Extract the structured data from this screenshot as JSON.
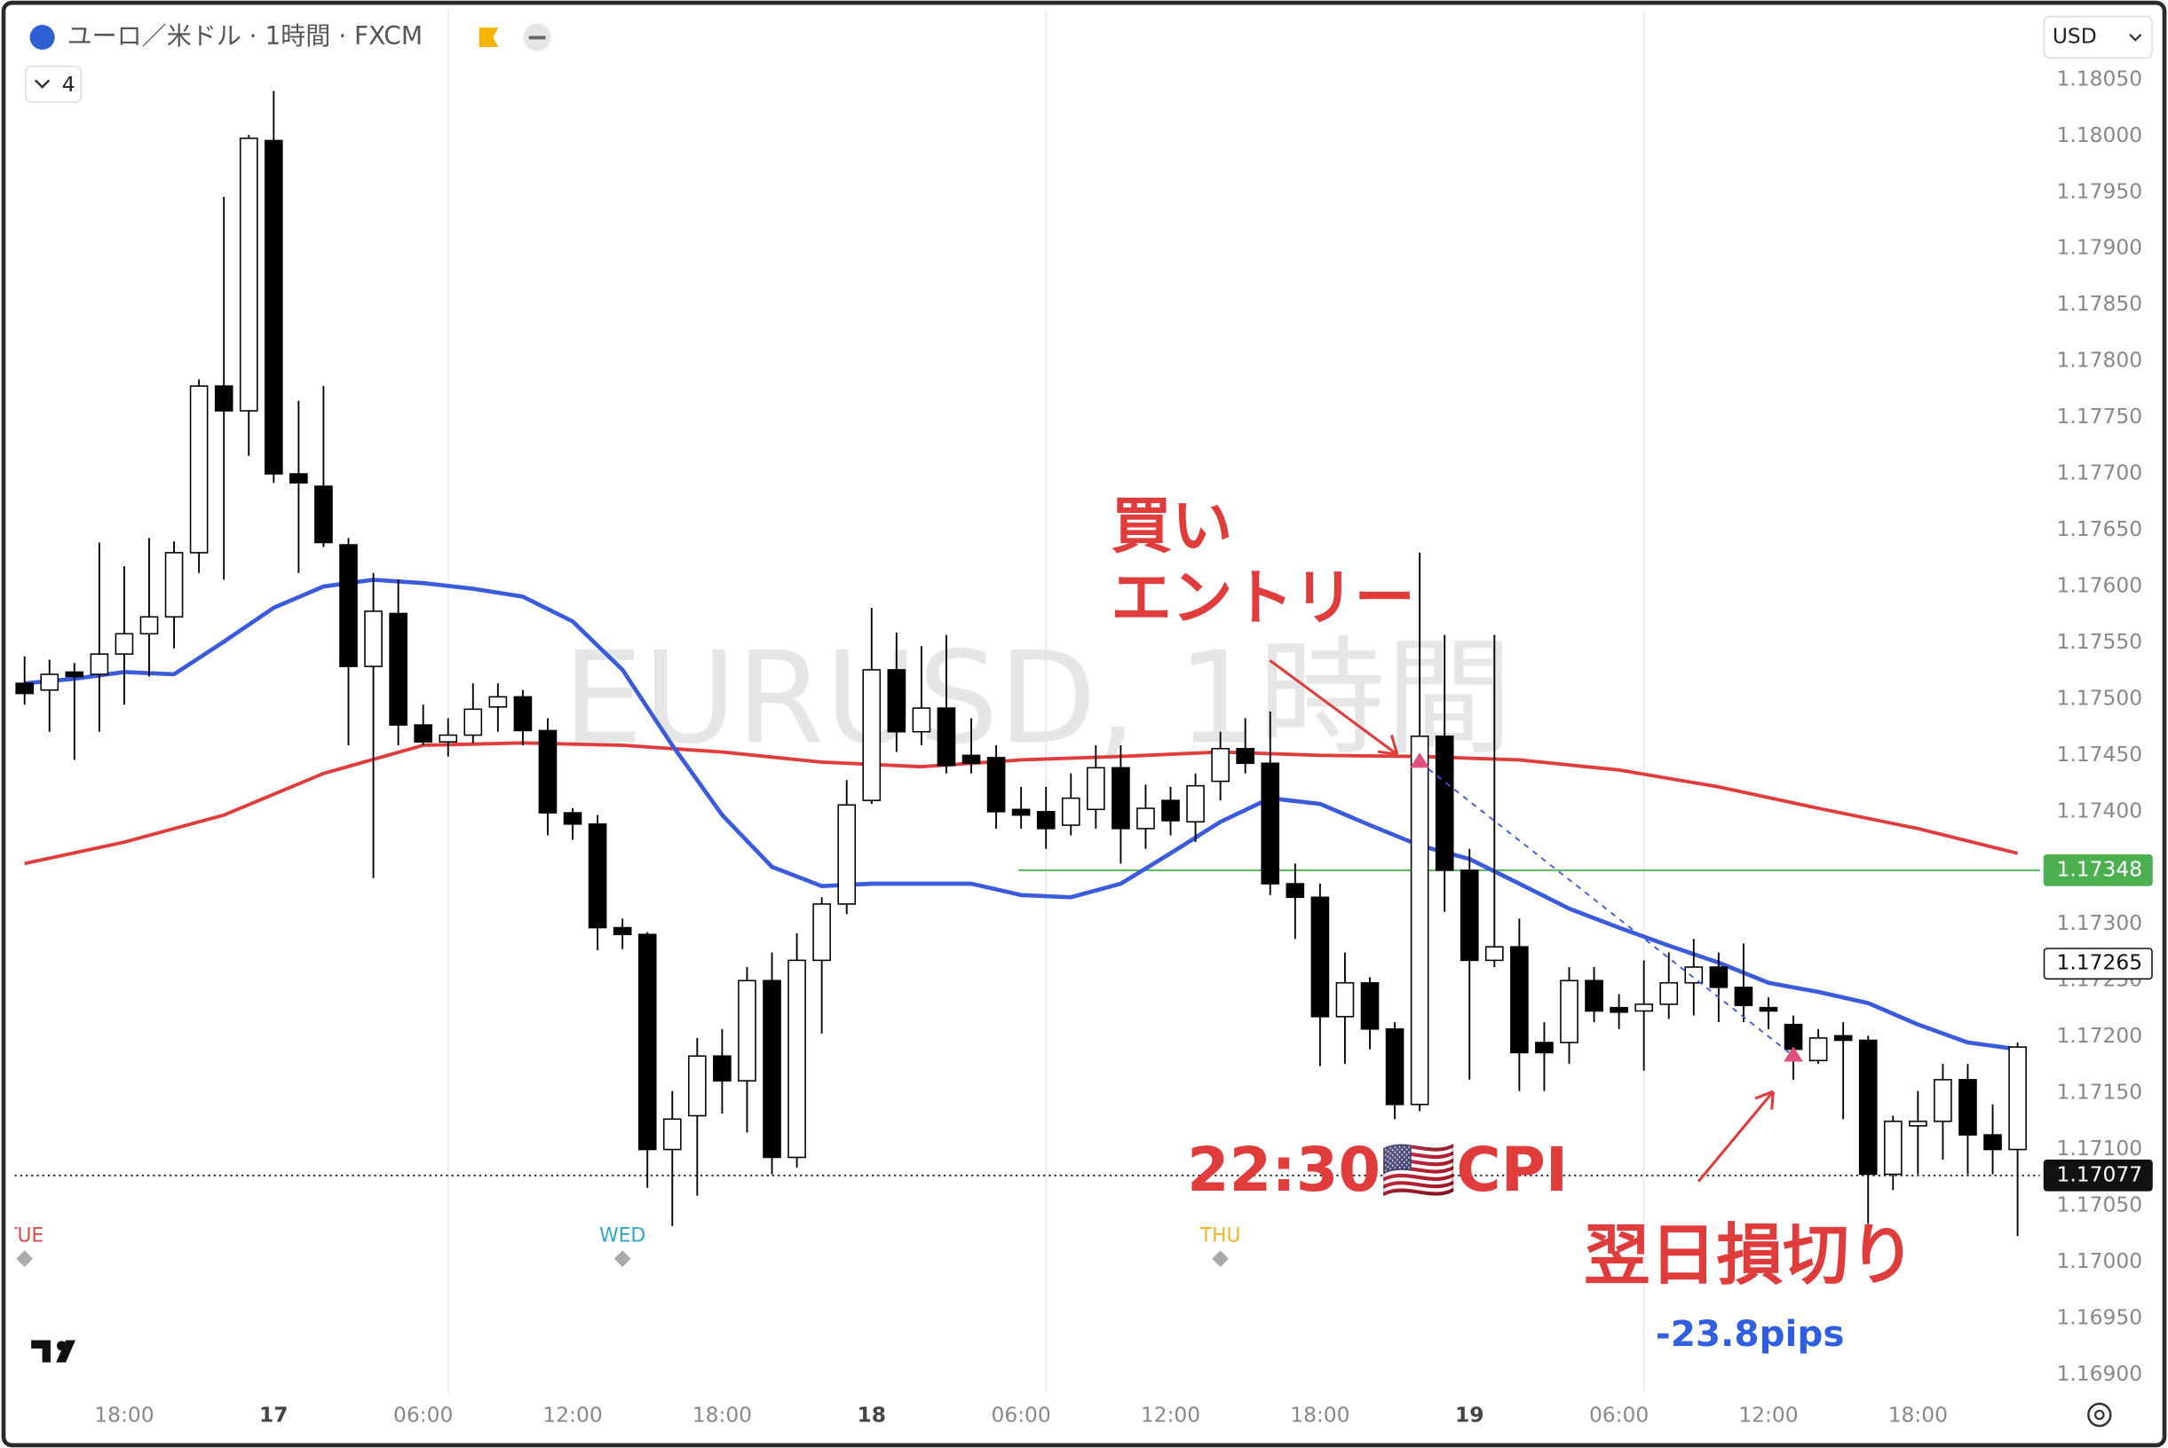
{
  "header": {
    "symbol": "ユーロ／米ドル · 1時間 · FXCM",
    "indicator_count": 4,
    "currency": "USD"
  },
  "chart_data": {
    "type": "candlestick",
    "watermark": "EURUSD, 1時間",
    "up_color": "#ffffff",
    "down_color": "#000000",
    "x": [
      -4,
      -3,
      -2,
      -1,
      0,
      1,
      2,
      3,
      4,
      5,
      6,
      7,
      8,
      9,
      10,
      11,
      12,
      13,
      14,
      15,
      16,
      17,
      18,
      19,
      20,
      21,
      22,
      23,
      24,
      25,
      26,
      27,
      28,
      29,
      30,
      31,
      32,
      33,
      34,
      35,
      36,
      37,
      38,
      39,
      40,
      41,
      42,
      43,
      44,
      45,
      46,
      47,
      48,
      49,
      50,
      51,
      52,
      53,
      54,
      55,
      56,
      57,
      58,
      59,
      60,
      61,
      62,
      63,
      64,
      65,
      66,
      67,
      68,
      69,
      70,
      71,
      72,
      73,
      74,
      75,
      76
    ],
    "open": [
      1.17514,
      1.17508,
      1.17524,
      1.17522,
      1.1754,
      1.17558,
      1.17573,
      1.1763,
      1.17778,
      1.17756,
      1.17996,
      1.177,
      1.17689,
      1.17637,
      1.17529,
      1.17576,
      1.17477,
      1.17462,
      1.17468,
      1.17493,
      1.17502,
      1.17472,
      1.17399,
      1.17389,
      1.17297,
      1.17291,
      1.171,
      1.1713,
      1.17183,
      1.17161,
      1.1725,
      1.17093,
      1.17268,
      1.17318,
      1.1741,
      1.17526,
      1.17471,
      1.17492,
      1.1745,
      1.17448,
      1.17402,
      1.174,
      1.17388,
      1.17402,
      1.17439,
      1.17385,
      1.1741,
      1.17391,
      1.17427,
      1.17456,
      1.17443,
      1.17336,
      1.17324,
      1.17218,
      1.17248,
      1.17207,
      1.1714,
      1.17467,
      1.17348,
      1.17268,
      1.1728,
      1.17195,
      1.17195,
      1.1725,
      1.17226,
      1.17223,
      1.17229,
      1.17248,
      1.17262,
      1.17244,
      1.17226,
      1.17211,
      1.17179,
      1.17201,
      1.17197,
      1.17078,
      1.17121,
      1.17125,
      1.17162,
      1.17113,
      1.171
    ],
    "high": [
      1.17538,
      1.17535,
      1.17532,
      1.17639,
      1.17618,
      1.17643,
      1.1764,
      1.17784,
      1.17946,
      1.18001,
      1.1804,
      1.17765,
      1.17778,
      1.17643,
      1.17612,
      1.17606,
      1.17495,
      1.17483,
      1.17514,
      1.17514,
      1.17508,
      1.17483,
      1.17403,
      1.17397,
      1.17305,
      1.17293,
      1.17152,
      1.17199,
      1.17207,
      1.17262,
      1.17275,
      1.17292,
      1.17324,
      1.17428,
      1.17581,
      1.17559,
      1.17547,
      1.17557,
      1.17483,
      1.17459,
      1.17422,
      1.17422,
      1.17434,
      1.17459,
      1.17459,
      1.17424,
      1.17422,
      1.17434,
      1.17471,
      1.17483,
      1.17489,
      1.17354,
      1.17336,
      1.17275,
      1.17253,
      1.17213,
      1.1763,
      1.17557,
      1.17367,
      1.17557,
      1.17305,
      1.17213,
      1.17262,
      1.17262,
      1.17238,
      1.17268,
      1.17275,
      1.17287,
      1.17275,
      1.17283,
      1.17235,
      1.17219,
      1.17207,
      1.17213,
      1.17201,
      1.1713,
      1.17152,
      1.17176,
      1.17176,
      1.1714,
      1.17195
    ],
    "low": [
      1.17495,
      1.17471,
      1.17446,
      1.17471,
      1.17495,
      1.1752,
      1.17545,
      1.17612,
      1.17606,
      1.17716,
      1.17692,
      1.17612,
      1.17635,
      1.17459,
      1.17341,
      1.17459,
      1.17459,
      1.17449,
      1.17461,
      1.17471,
      1.17459,
      1.17379,
      1.17375,
      1.17277,
      1.17278,
      1.17066,
      1.17032,
      1.17059,
      1.17132,
      1.17115,
      1.17078,
      1.17084,
      1.17203,
      1.17309,
      1.17407,
      1.17453,
      1.17459,
      1.17434,
      1.17434,
      1.17385,
      1.17385,
      1.17367,
      1.17379,
      1.17385,
      1.17354,
      1.17367,
      1.17379,
      1.17373,
      1.1741,
      1.17434,
      1.17326,
      1.17287,
      1.17174,
      1.17176,
      1.17189,
      1.17127,
      1.17134,
      1.17311,
      1.17162,
      1.17262,
      1.17152,
      1.17152,
      1.17176,
      1.17213,
      1.17207,
      1.1717,
      1.17216,
      1.17219,
      1.17213,
      1.17213,
      1.17207,
      1.17162,
      1.17176,
      1.17127,
      1.17034,
      1.17064,
      1.17078,
      1.17091,
      1.17078,
      1.17078,
      1.17023
    ],
    "close": [
      1.17505,
      1.17522,
      1.1752,
      1.1754,
      1.17558,
      1.17573,
      1.1763,
      1.17778,
      1.17756,
      1.17998,
      1.177,
      1.17692,
      1.17639,
      1.17529,
      1.17578,
      1.17477,
      1.17462,
      1.17468,
      1.17491,
      1.17502,
      1.17472,
      1.17399,
      1.17389,
      1.17297,
      1.17291,
      1.171,
      1.17127,
      1.17183,
      1.17161,
      1.1725,
      1.17093,
      1.17268,
      1.17318,
      1.17406,
      1.17526,
      1.17471,
      1.17492,
      1.17441,
      1.17443,
      1.174,
      1.17397,
      1.17385,
      1.17412,
      1.17439,
      1.17385,
      1.17403,
      1.17392,
      1.17423,
      1.17456,
      1.17443,
      1.17336,
      1.17324,
      1.17218,
      1.17248,
      1.17207,
      1.1714,
      1.17467,
      1.17348,
      1.17268,
      1.1728,
      1.17186,
      1.17186,
      1.1725,
      1.17223,
      1.17222,
      1.17229,
      1.17248,
      1.17262,
      1.17244,
      1.17228,
      1.17223,
      1.17189,
      1.17199,
      1.17197,
      1.17078,
      1.17125,
      1.17125,
      1.17162,
      1.17113,
      1.171,
      1.17191
    ],
    "lines": [
      {
        "color": "#e03c3c",
        "width": 2.5,
        "x": [
          -4,
          0,
          4,
          8,
          12,
          16,
          20,
          24,
          28,
          32,
          36,
          40,
          44,
          48,
          52,
          56,
          60,
          64,
          68,
          72,
          76
        ],
        "values": [
          1.17354,
          1.17373,
          1.17397,
          1.17434,
          1.17459,
          1.17461,
          1.17459,
          1.17453,
          1.17444,
          1.1744,
          1.17446,
          1.17449,
          1.17453,
          1.1745,
          1.17449,
          1.17446,
          1.17437,
          1.17422,
          1.17403,
          1.17385,
          1.17363
        ]
      },
      {
        "color": "#3a5bdc",
        "width": 3,
        "x": [
          -4,
          -2,
          0,
          2,
          4,
          6,
          8,
          10,
          12,
          14,
          16,
          18,
          20,
          22,
          24,
          26,
          28,
          30,
          32,
          34,
          36,
          38,
          40,
          42,
          44,
          46,
          48,
          50,
          52,
          54,
          56,
          58,
          60,
          62,
          64,
          66,
          68,
          70,
          72,
          74,
          76
        ],
        "values": [
          1.17514,
          1.17518,
          1.17524,
          1.17522,
          1.17551,
          1.17581,
          1.176,
          1.17606,
          1.17603,
          1.17598,
          1.17591,
          1.17569,
          1.17526,
          1.17459,
          1.17397,
          1.17351,
          1.17334,
          1.17336,
          1.17336,
          1.17336,
          1.17326,
          1.17324,
          1.17336,
          1.17363,
          1.17391,
          1.17412,
          1.17407,
          1.17388,
          1.1737,
          1.17358,
          1.17336,
          1.17314,
          1.17297,
          1.17281,
          1.17266,
          1.17248,
          1.1724,
          1.1723,
          1.17211,
          1.17195,
          1.17189
        ]
      }
    ],
    "levels": [
      {
        "value": 1.17348,
        "from": 35.9,
        "color": "#4caf50",
        "dash": "none"
      },
      {
        "value": 1.17077,
        "from": -4.4,
        "color": "#222222",
        "dash": "1.5 2.5"
      }
    ],
    "price_labels": [
      {
        "value": 1.17348,
        "bg": "#4caf50",
        "fg": "#ffffff",
        "border": "#4caf50"
      },
      {
        "value": 1.17265,
        "bg": "#ffffff",
        "fg": "#111111",
        "border": "#111111"
      },
      {
        "value": 1.17077,
        "bg": "#111111",
        "fg": "#ffffff",
        "border": "#111111"
      }
    ],
    "sessions": [
      {
        "label": "TUE",
        "x": -4,
        "color": "#e04848"
      },
      {
        "label": "WED",
        "x": 20,
        "color": "#2fa8c8"
      },
      {
        "label": "THU",
        "x": 44,
        "color": "#f0b429"
      }
    ],
    "vlines": [
      13,
      37,
      61
    ],
    "trades": [
      {
        "x": 52,
        "price": 1.17444
      },
      {
        "x": 67,
        "price": 1.17183
      }
    ],
    "xlim": [
      -4.4,
      76.9
    ],
    "ylim": [
      1.16884,
      1.18111
    ],
    "xticks": [
      {
        "value": 0,
        "label": "18:00"
      },
      {
        "value": 6,
        "label": "17"
      },
      {
        "value": 12,
        "label": "06:00"
      },
      {
        "value": 18,
        "label": "12:00"
      },
      {
        "value": 24,
        "label": "18:00"
      },
      {
        "value": 30,
        "label": "18"
      },
      {
        "value": 36,
        "label": "06:00"
      },
      {
        "value": 42,
        "label": "12:00"
      },
      {
        "value": 48,
        "label": "18:00"
      },
      {
        "value": 54,
        "label": "19"
      },
      {
        "value": 60,
        "label": "06:00"
      },
      {
        "value": 66,
        "label": "12:00"
      },
      {
        "value": 72,
        "label": "18:00"
      }
    ],
    "yticks": [
      {
        "value": 1.1805,
        "label": "1.18050"
      },
      {
        "value": 1.18,
        "label": "1.18000"
      },
      {
        "value": 1.1795,
        "label": "1.17950"
      },
      {
        "value": 1.179,
        "label": "1.17900"
      },
      {
        "value": 1.1785,
        "label": "1.17850"
      },
      {
        "value": 1.178,
        "label": "1.17800"
      },
      {
        "value": 1.1775,
        "label": "1.17750"
      },
      {
        "value": 1.177,
        "label": "1.17700"
      },
      {
        "value": 1.1765,
        "label": "1.17650"
      },
      {
        "value": 1.176,
        "label": "1.17600"
      },
      {
        "value": 1.1755,
        "label": "1.17550"
      },
      {
        "value": 1.175,
        "label": "1.17500"
      },
      {
        "value": 1.1745,
        "label": "1.17450"
      },
      {
        "value": 1.174,
        "label": "1.17400"
      },
      {
        "value": 1.1735,
        "label": "1.17350"
      },
      {
        "value": 1.173,
        "label": "1.17300"
      },
      {
        "value": 1.1725,
        "label": "1.17250"
      },
      {
        "value": 1.172,
        "label": "1.17200"
      },
      {
        "value": 1.1715,
        "label": "1.17150"
      },
      {
        "value": 1.171,
        "label": "1.17100"
      },
      {
        "value": 1.1705,
        "label": "1.17050"
      },
      {
        "value": 1.17,
        "label": "1.17000"
      },
      {
        "value": 1.1695,
        "label": "1.16950"
      },
      {
        "value": 1.169,
        "label": "1.16900"
      }
    ]
  },
  "annotations": {
    "entry": [
      "買い",
      "エントリー"
    ],
    "cpi": "22:30🇺🇸CPI",
    "stop": "翌日損切り",
    "pips": "-23.8pips"
  }
}
